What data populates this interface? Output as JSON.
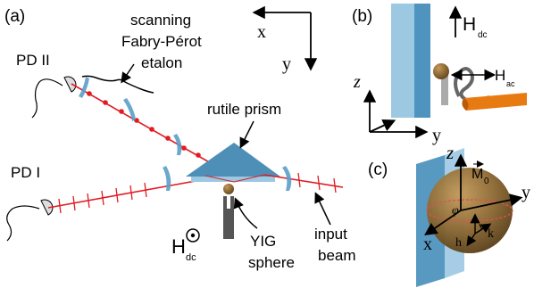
{
  "panel_a": {
    "tag": "(a)",
    "etalon_label": [
      "scanning",
      "Fabry-Pérot",
      "etalon"
    ],
    "pd2": "PD II",
    "pd1": "PD I",
    "prism_label": "rutile prism",
    "axis_x": "x",
    "axis_y": "y",
    "hdc_main": "H",
    "hdc_sub": "dc",
    "yig_label": [
      "YIG",
      "sphere"
    ],
    "input_label": [
      "input",
      "beam"
    ]
  },
  "panel_b": {
    "tag": "(b)",
    "hdc_main": "H",
    "hdc_sub": "dc",
    "hac_main": "H",
    "hac_sub": "ac",
    "axis_z": "z",
    "axis_y": "y"
  },
  "panel_c": {
    "tag": "(c)",
    "axis_z": "z",
    "axis_y": "y",
    "axis_x": "x",
    "m0_main": "M",
    "m0_sub": "0",
    "phi": "φ",
    "v": "v",
    "h": "h",
    "k": "k"
  },
  "colors": {
    "beam": "#e11b22",
    "lens": "#5b9fc8",
    "prism": "#4e8fb8",
    "slab_light": "#9cc8e2",
    "slab_dark": "#4f93bf",
    "sphere": "#8a6630",
    "coil": "#e87a12"
  }
}
